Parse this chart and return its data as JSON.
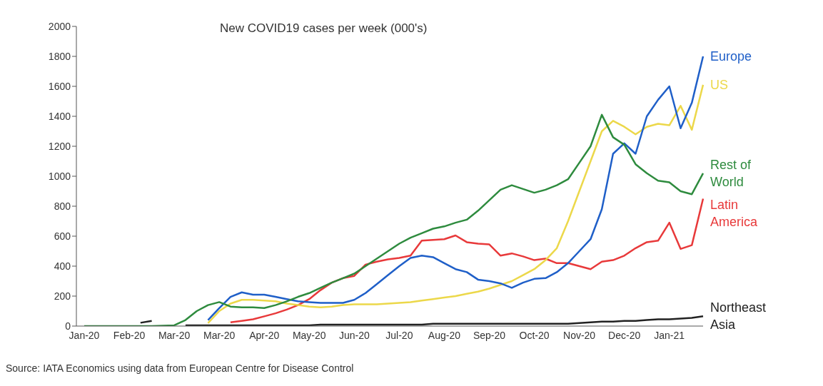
{
  "chart_data": {
    "type": "line",
    "title": "New COVID19 cases per week (000's)",
    "categories": [
      "Jan-20",
      null,
      null,
      null,
      "Feb-20",
      null,
      null,
      null,
      "Mar-20",
      null,
      null,
      null,
      "Mar-20",
      null,
      null,
      null,
      "Apr-20",
      null,
      null,
      null,
      "May-20",
      null,
      null,
      null,
      "Jun-20",
      null,
      null,
      null,
      "Jul-20",
      null,
      null,
      null,
      "Aug-20",
      null,
      null,
      null,
      "Sep-20",
      null,
      null,
      null,
      "Oct-20",
      null,
      null,
      null,
      "Nov-20",
      null,
      null,
      null,
      "Dec-20",
      null,
      null,
      null,
      "Jan-21",
      null,
      null,
      null
    ],
    "ylim": [
      0,
      2000
    ],
    "yticks": [
      0,
      200,
      400,
      600,
      800,
      1000,
      1200,
      1400,
      1600,
      1800,
      2000
    ],
    "grid": false,
    "marker": "none",
    "annotations": [
      "Source: IATA Economics using data from European Centre for Disease Control"
    ],
    "series": [
      {
        "name": "Latin America",
        "color": "#e8393a",
        "values": [
          null,
          null,
          null,
          null,
          null,
          null,
          null,
          null,
          null,
          null,
          null,
          null,
          null,
          25,
          35,
          45,
          65,
          85,
          110,
          140,
          180,
          240,
          290,
          320,
          335,
          410,
          430,
          445,
          455,
          470,
          570,
          575,
          580,
          605,
          560,
          550,
          545,
          470,
          485,
          465,
          440,
          450,
          420,
          420,
          400,
          380,
          430,
          440,
          470,
          520,
          560,
          570,
          690,
          515,
          540,
          850
        ]
      },
      {
        "name": "US",
        "color": "#ecd84a",
        "values": [
          null,
          null,
          null,
          null,
          null,
          null,
          null,
          null,
          null,
          null,
          null,
          20,
          100,
          150,
          175,
          175,
          170,
          165,
          150,
          140,
          130,
          125,
          130,
          140,
          145,
          145,
          145,
          150,
          155,
          160,
          170,
          180,
          190,
          200,
          215,
          230,
          250,
          275,
          300,
          340,
          380,
          440,
          520,
          700,
          900,
          1100,
          1300,
          1370,
          1330,
          1280,
          1330,
          1350,
          1340,
          1470,
          1310,
          1610
        ]
      },
      {
        "name": "Europe",
        "color": "#1f5fc8",
        "values": [
          null,
          null,
          null,
          null,
          null,
          null,
          null,
          null,
          null,
          null,
          null,
          40,
          120,
          195,
          225,
          210,
          210,
          195,
          180,
          165,
          160,
          155,
          155,
          155,
          175,
          220,
          280,
          340,
          400,
          455,
          470,
          460,
          420,
          380,
          360,
          310,
          300,
          285,
          255,
          290,
          315,
          320,
          360,
          420,
          500,
          580,
          780,
          1150,
          1220,
          1150,
          1400,
          1510,
          1600,
          1320,
          1490,
          1800
        ]
      },
      {
        "name": "Northeast Asia",
        "color": "#222222",
        "values": [
          null,
          null,
          null,
          null,
          null,
          22,
          35,
          null,
          null,
          5,
          5,
          5,
          5,
          5,
          5,
          5,
          5,
          5,
          5,
          5,
          5,
          10,
          10,
          10,
          10,
          10,
          10,
          10,
          10,
          10,
          10,
          15,
          15,
          15,
          15,
          15,
          15,
          15,
          15,
          15,
          15,
          15,
          15,
          15,
          20,
          25,
          30,
          30,
          35,
          35,
          40,
          45,
          45,
          50,
          55,
          65
        ]
      },
      {
        "name": "Rest of World",
        "color": "#2e8b3e",
        "values": [
          0,
          0,
          0,
          0,
          0,
          0,
          0,
          2,
          5,
          40,
          100,
          140,
          160,
          130,
          125,
          125,
          120,
          140,
          165,
          195,
          220,
          255,
          290,
          320,
          350,
          400,
          450,
          500,
          550,
          590,
          620,
          650,
          665,
          690,
          710,
          770,
          840,
          910,
          940,
          915,
          890,
          910,
          940,
          980,
          1090,
          1200,
          1410,
          1260,
          1210,
          1080,
          1020,
          970,
          960,
          900,
          880,
          1020
        ]
      }
    ]
  }
}
